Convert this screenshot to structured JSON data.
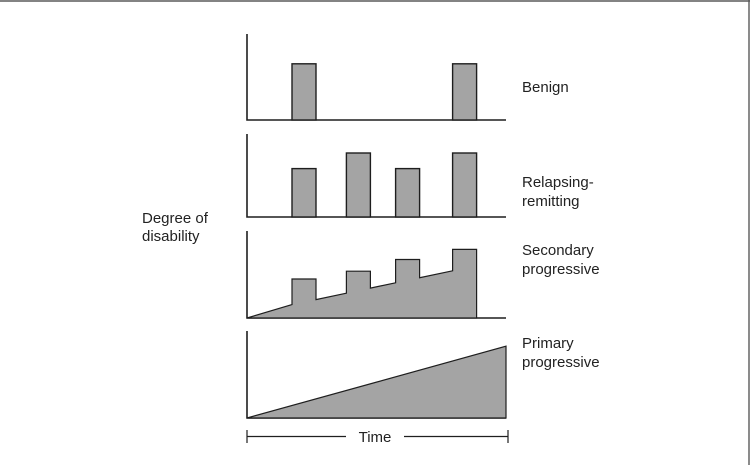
{
  "y_axis_label": [
    "Degree of",
    "disability"
  ],
  "x_axis_label": "Time",
  "panels": [
    {
      "label": [
        "Benign"
      ],
      "shape": "bars",
      "relapses": [
        0.72,
        0.72
      ],
      "relapse_times": [
        0.22,
        0.84
      ]
    },
    {
      "label": [
        "Relapsing-",
        "remitting"
      ],
      "shape": "bars",
      "relapses": [
        0.62,
        0.82,
        0.62,
        0.82
      ],
      "relapse_times": [
        0.22,
        0.43,
        0.62,
        0.84
      ]
    },
    {
      "label": [
        "Secondary",
        "progressive"
      ],
      "shape": "stepped-area",
      "relapses": [
        0.5,
        0.6,
        0.75,
        0.88
      ],
      "relapse_times": [
        0.22,
        0.43,
        0.62,
        0.84
      ]
    },
    {
      "label": [
        "Primary",
        "progressive"
      ],
      "shape": "linear-area",
      "end_level": 0.92
    }
  ]
}
